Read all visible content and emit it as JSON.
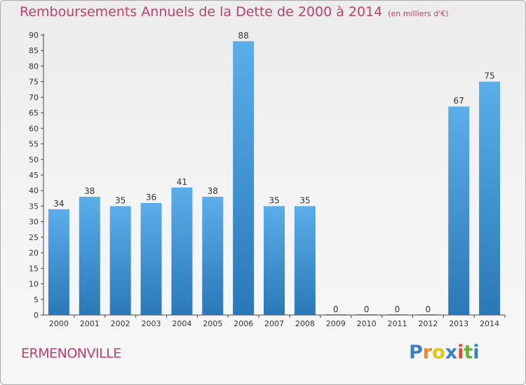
{
  "header": {
    "title": "Remboursements Annuels de la Dette de 2000 à 2014",
    "unit": "(en milliers d'€)"
  },
  "footer": {
    "commune": "ERMENONVILLE",
    "logo_letters": [
      "P",
      "r",
      "o",
      "x",
      "i",
      "t",
      "i"
    ],
    "logo_colors": [
      "#3a7fc8",
      "#f08a1c",
      "#e6c213",
      "#3a7fc8",
      "#e8423c",
      "#66b43a",
      "#3a7fc8"
    ]
  },
  "colors": {
    "bar": "#4a9ad6",
    "title": "#c0406a",
    "axis": "#333333"
  },
  "chart_data": {
    "type": "bar",
    "title": "Remboursements Annuels de la Dette de 2000 à 2014",
    "xlabel": "",
    "ylabel": "",
    "categories": [
      "2000",
      "2001",
      "2002",
      "2003",
      "2004",
      "2005",
      "2006",
      "2007",
      "2008",
      "2009",
      "2010",
      "2011",
      "2012",
      "2013",
      "2014"
    ],
    "values": [
      34,
      38,
      35,
      36,
      41,
      38,
      88,
      35,
      35,
      0,
      0,
      0,
      0,
      67,
      75
    ],
    "ylim": [
      0,
      90
    ],
    "yticks": [
      0,
      5,
      10,
      15,
      20,
      25,
      30,
      35,
      40,
      45,
      50,
      55,
      60,
      65,
      70,
      75,
      80,
      85,
      90
    ],
    "grid": false,
    "legend": "none"
  }
}
